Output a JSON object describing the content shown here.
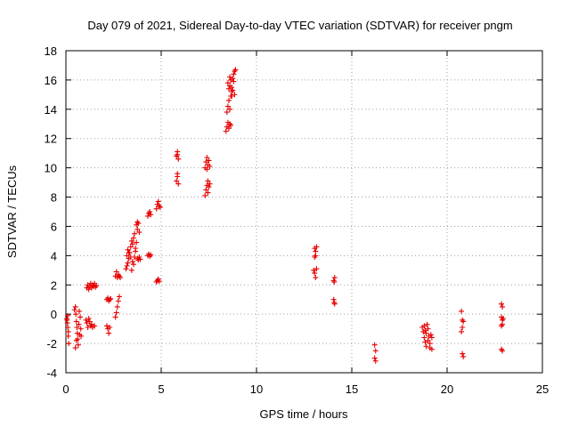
{
  "chart_data": {
    "type": "scatter",
    "title": "Day 079 of 2021, Sidereal Day-to-day VTEC variation (SDTVAR) for receiver pngm",
    "xlabel": "GPS time / hours",
    "ylabel": "SDTVAR / TECUs",
    "xlim": [
      0,
      25
    ],
    "ylim": [
      -4,
      18
    ],
    "xticks": [
      0,
      5,
      10,
      15,
      20,
      25
    ],
    "yticks": [
      -4,
      -2,
      0,
      2,
      4,
      6,
      8,
      10,
      12,
      14,
      16,
      18
    ],
    "grid": true,
    "marker": "+",
    "color": "#e60000",
    "series": [
      {
        "name": "SDTVAR",
        "points": [
          [
            0.05,
            -0.3
          ],
          [
            0.08,
            -0.6
          ],
          [
            0.1,
            -0.9
          ],
          [
            0.12,
            -1.5
          ],
          [
            0.15,
            -2.0
          ],
          [
            0.1,
            -0.1
          ],
          [
            0.06,
            -0.4
          ],
          [
            0.13,
            -1.2
          ],
          [
            0.45,
            0.3
          ],
          [
            0.5,
            0.5
          ],
          [
            0.52,
            0.0
          ],
          [
            0.55,
            -0.5
          ],
          [
            0.58,
            -0.9
          ],
          [
            0.6,
            -1.3
          ],
          [
            0.62,
            -1.7
          ],
          [
            0.65,
            -2.1
          ],
          [
            0.5,
            -2.3
          ],
          [
            0.55,
            -1.8
          ],
          [
            0.7,
            0.2
          ],
          [
            0.75,
            -0.2
          ],
          [
            0.78,
            -1.0
          ],
          [
            0.8,
            -1.5
          ],
          [
            0.68,
            -0.7
          ],
          [
            0.72,
            -1.4
          ],
          [
            1.05,
            -0.4
          ],
          [
            1.1,
            -0.6
          ],
          [
            1.15,
            -0.9
          ],
          [
            1.2,
            -0.3
          ],
          [
            1.25,
            -0.5
          ],
          [
            1.3,
            -0.8
          ],
          [
            1.35,
            -0.7
          ],
          [
            1.4,
            -0.9
          ],
          [
            1.5,
            -0.8
          ],
          [
            1.1,
            1.8
          ],
          [
            1.15,
            2.0
          ],
          [
            1.2,
            1.7
          ],
          [
            1.25,
            1.9
          ],
          [
            1.3,
            2.1
          ],
          [
            1.35,
            1.8
          ],
          [
            1.4,
            2.0
          ],
          [
            1.45,
            1.9
          ],
          [
            1.5,
            2.1
          ],
          [
            1.55,
            1.85
          ],
          [
            1.6,
            1.95
          ],
          [
            2.15,
            1.0
          ],
          [
            2.2,
            1.1
          ],
          [
            2.25,
            0.9
          ],
          [
            2.3,
            1.0
          ],
          [
            2.35,
            1.05
          ],
          [
            2.15,
            -0.8
          ],
          [
            2.2,
            -1.0
          ],
          [
            2.25,
            -1.3
          ],
          [
            2.3,
            -0.9
          ],
          [
            2.6,
            -0.2
          ],
          [
            2.65,
            0.1
          ],
          [
            2.7,
            0.5
          ],
          [
            2.75,
            0.9
          ],
          [
            2.8,
            1.2
          ],
          [
            2.6,
            2.6
          ],
          [
            2.65,
            2.9
          ],
          [
            2.7,
            2.5
          ],
          [
            2.75,
            2.7
          ],
          [
            2.8,
            2.6
          ],
          [
            2.85,
            2.5
          ],
          [
            3.15,
            3.1
          ],
          [
            3.2,
            3.3
          ],
          [
            3.25,
            3.5
          ],
          [
            3.3,
            3.8
          ],
          [
            3.35,
            4.2
          ],
          [
            3.4,
            4.6
          ],
          [
            3.45,
            3.0
          ],
          [
            3.5,
            3.6
          ],
          [
            3.2,
            4.0
          ],
          [
            3.25,
            4.4
          ],
          [
            3.3,
            4.2
          ],
          [
            3.4,
            3.9
          ],
          [
            3.5,
            4.8
          ],
          [
            3.55,
            5.2
          ],
          [
            3.6,
            5.5
          ],
          [
            3.65,
            4.5
          ],
          [
            3.6,
            3.9
          ],
          [
            3.65,
            4.3
          ],
          [
            3.7,
            4.9
          ],
          [
            3.75,
            5.8
          ],
          [
            3.8,
            6.2
          ],
          [
            3.85,
            5.6
          ],
          [
            3.7,
            6.1
          ],
          [
            3.75,
            6.3
          ],
          [
            3.55,
            3.4
          ],
          [
            3.45,
            5.0
          ],
          [
            3.75,
            3.8
          ],
          [
            3.8,
            3.7
          ],
          [
            3.85,
            3.9
          ],
          [
            3.9,
            3.75
          ],
          [
            4.3,
            6.7
          ],
          [
            4.35,
            6.9
          ],
          [
            4.4,
            7.0
          ],
          [
            4.45,
            6.8
          ],
          [
            4.3,
            4.0
          ],
          [
            4.35,
            4.1
          ],
          [
            4.4,
            3.95
          ],
          [
            4.45,
            4.05
          ],
          [
            4.75,
            7.2
          ],
          [
            4.8,
            7.5
          ],
          [
            4.85,
            7.7
          ],
          [
            4.9,
            7.4
          ],
          [
            4.95,
            7.3
          ],
          [
            4.75,
            2.2
          ],
          [
            4.8,
            2.3
          ],
          [
            4.85,
            2.4
          ],
          [
            4.9,
            2.25
          ],
          [
            5.8,
            10.8
          ],
          [
            5.85,
            11.1
          ],
          [
            5.9,
            10.6
          ],
          [
            5.85,
            10.9
          ],
          [
            5.8,
            9.1
          ],
          [
            5.85,
            9.4
          ],
          [
            5.9,
            8.9
          ],
          [
            5.85,
            9.6
          ],
          [
            7.3,
            10.0
          ],
          [
            7.35,
            10.4
          ],
          [
            7.4,
            10.7
          ],
          [
            7.45,
            10.2
          ],
          [
            7.5,
            10.5
          ],
          [
            7.55,
            10.1
          ],
          [
            7.4,
            9.9
          ],
          [
            7.3,
            8.1
          ],
          [
            7.35,
            8.5
          ],
          [
            7.4,
            8.8
          ],
          [
            7.45,
            9.1
          ],
          [
            7.5,
            8.7
          ],
          [
            7.55,
            8.9
          ],
          [
            7.45,
            8.3
          ],
          [
            8.4,
            12.5
          ],
          [
            8.45,
            12.8
          ],
          [
            8.5,
            13.1
          ],
          [
            8.55,
            12.7
          ],
          [
            8.6,
            13.0
          ],
          [
            8.65,
            12.9
          ],
          [
            8.45,
            13.8
          ],
          [
            8.5,
            14.2
          ],
          [
            8.55,
            14.6
          ],
          [
            8.6,
            14.0
          ],
          [
            8.65,
            14.9
          ],
          [
            8.7,
            15.2
          ],
          [
            8.5,
            15.8
          ],
          [
            8.55,
            15.4
          ],
          [
            8.6,
            15.6
          ],
          [
            8.65,
            16.0
          ],
          [
            8.7,
            15.5
          ],
          [
            8.75,
            15.3
          ],
          [
            8.8,
            15.9
          ],
          [
            8.85,
            16.6
          ],
          [
            8.9,
            16.7
          ],
          [
            8.8,
            16.4
          ],
          [
            8.75,
            16.1
          ],
          [
            8.7,
            14.9
          ],
          [
            8.6,
            16.2
          ],
          [
            8.85,
            15.0
          ],
          [
            13.05,
            4.5
          ],
          [
            13.1,
            4.3
          ],
          [
            13.15,
            4.6
          ],
          [
            13.05,
            3.9
          ],
          [
            13.1,
            4.0
          ],
          [
            13.0,
            3.0
          ],
          [
            13.05,
            2.8
          ],
          [
            13.1,
            2.5
          ],
          [
            13.15,
            3.1
          ],
          [
            14.05,
            2.3
          ],
          [
            14.1,
            2.5
          ],
          [
            14.08,
            2.2
          ],
          [
            14.05,
            1.0
          ],
          [
            14.1,
            0.7
          ],
          [
            14.08,
            0.8
          ],
          [
            16.2,
            -2.1
          ],
          [
            16.25,
            -2.5
          ],
          [
            16.2,
            -3.0
          ],
          [
            16.25,
            -3.2
          ],
          [
            18.7,
            -0.9
          ],
          [
            18.75,
            -1.2
          ],
          [
            18.8,
            -1.6
          ],
          [
            18.85,
            -1.9
          ],
          [
            18.9,
            -2.2
          ],
          [
            18.95,
            -0.7
          ],
          [
            19.0,
            -1.0
          ],
          [
            19.05,
            -1.5
          ],
          [
            19.1,
            -2.3
          ],
          [
            19.15,
            -1.4
          ],
          [
            19.2,
            -2.4
          ],
          [
            18.8,
            -0.8
          ],
          [
            18.85,
            -1.1
          ],
          [
            19.0,
            -1.8
          ],
          [
            19.1,
            -2.0
          ],
          [
            18.9,
            -1.3
          ],
          [
            19.2,
            -1.6
          ],
          [
            20.75,
            0.2
          ],
          [
            20.8,
            -0.4
          ],
          [
            20.85,
            -0.5
          ],
          [
            20.8,
            -0.9
          ],
          [
            20.75,
            -1.2
          ],
          [
            20.8,
            -2.7
          ],
          [
            20.85,
            -2.9
          ],
          [
            22.85,
            0.7
          ],
          [
            22.9,
            0.5
          ],
          [
            22.85,
            -0.2
          ],
          [
            22.9,
            -0.4
          ],
          [
            22.95,
            -0.3
          ],
          [
            22.85,
            -0.8
          ],
          [
            22.9,
            -0.7
          ],
          [
            22.85,
            -2.4
          ],
          [
            22.9,
            -2.5
          ]
        ]
      }
    ]
  }
}
